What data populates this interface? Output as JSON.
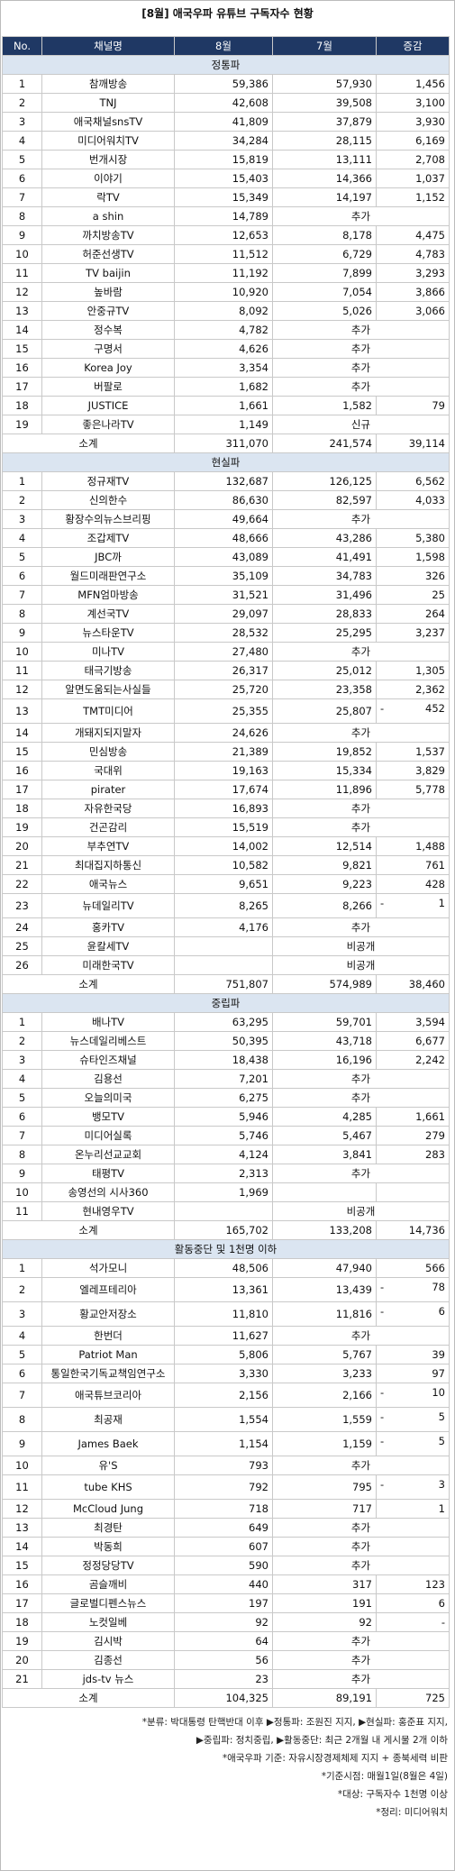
{
  "title": "[8월] 애국우파 유튜브 구독자수 현황",
  "columns": [
    "No.",
    "채널명",
    "8월",
    "7월",
    "증감"
  ],
  "sections": [
    {
      "name": "정통파",
      "rows": [
        [
          "1",
          "참깨방송",
          "59,386",
          "57,930",
          "1,456"
        ],
        [
          "2",
          "TNJ",
          "42,608",
          "39,508",
          "3,100"
        ],
        [
          "3",
          "애국채널snsTV",
          "41,809",
          "37,879",
          "3,930"
        ],
        [
          "4",
          "미디어워치TV",
          "34,284",
          "28,115",
          "6,169"
        ],
        [
          "5",
          "번개시장",
          "15,819",
          "13,111",
          "2,708"
        ],
        [
          "6",
          "이야기",
          "15,403",
          "14,366",
          "1,037"
        ],
        [
          "7",
          "락TV",
          "15,349",
          "14,197",
          "1,152"
        ],
        [
          "8",
          "a shin",
          "14,789",
          "추가",
          ""
        ],
        [
          "9",
          "까치방송TV",
          "12,653",
          "8,178",
          "4,475"
        ],
        [
          "10",
          "허준선생TV",
          "11,512",
          "6,729",
          "4,783"
        ],
        [
          "11",
          "TV baijin",
          "11,192",
          "7,899",
          "3,293"
        ],
        [
          "12",
          "높바람",
          "10,920",
          "7,054",
          "3,866"
        ],
        [
          "13",
          "안중규TV",
          "8,092",
          "5,026",
          "3,066"
        ],
        [
          "14",
          "정수복",
          "4,782",
          "추가",
          ""
        ],
        [
          "15",
          "구명서",
          "4,626",
          "추가",
          ""
        ],
        [
          "16",
          "Korea Joy",
          "3,354",
          "추가",
          ""
        ],
        [
          "17",
          "버팔로",
          "1,682",
          "추가",
          ""
        ],
        [
          "18",
          "JUSTICE",
          "1,661",
          "1,582",
          "79"
        ],
        [
          "19",
          "좋은나라TV",
          "1,149",
          "신규",
          ""
        ]
      ],
      "total": [
        "소계",
        "311,070",
        "241,574",
        "39,114"
      ]
    },
    {
      "name": "현실파",
      "rows": [
        [
          "1",
          "정규재TV",
          "132,687",
          "126,125",
          "6,562"
        ],
        [
          "2",
          "신의한수",
          "86,630",
          "82,597",
          "4,033"
        ],
        [
          "3",
          "황장수의뉴스브리핑",
          "49,664",
          "추가",
          ""
        ],
        [
          "4",
          "조갑제TV",
          "48,666",
          "43,286",
          "5,380"
        ],
        [
          "5",
          "JBC까",
          "43,089",
          "41,491",
          "1,598"
        ],
        [
          "6",
          "월드미래판연구소",
          "35,109",
          "34,783",
          "326"
        ],
        [
          "7",
          "MFN엄마방송",
          "31,521",
          "31,496",
          "25"
        ],
        [
          "8",
          "계선국TV",
          "29,097",
          "28,833",
          "264"
        ],
        [
          "9",
          "뉴스타운TV",
          "28,532",
          "25,295",
          "3,237"
        ],
        [
          "10",
          "미나TV",
          "27,480",
          "추가",
          ""
        ],
        [
          "11",
          "태극기방송",
          "26,317",
          "25,012",
          "1,305"
        ],
        [
          "12",
          "알면도움되는사실들",
          "25,720",
          "23,358",
          "2,362"
        ],
        [
          "13",
          "TMT미디어",
          "25,355",
          "25,807",
          "-|452"
        ],
        [
          "14",
          "개돼지되지말자",
          "24,626",
          "추가",
          ""
        ],
        [
          "15",
          "민심방송",
          "21,389",
          "19,852",
          "1,537"
        ],
        [
          "16",
          "국대위",
          "19,163",
          "15,334",
          "3,829"
        ],
        [
          "17",
          "pirater",
          "17,674",
          "11,896",
          "5,778"
        ],
        [
          "18",
          "자유한국당",
          "16,893",
          "추가",
          ""
        ],
        [
          "19",
          "건곤감리",
          "15,519",
          "추가",
          ""
        ],
        [
          "20",
          "부추연TV",
          "14,002",
          "12,514",
          "1,488"
        ],
        [
          "21",
          "최대집지하통신",
          "10,582",
          "9,821",
          "761"
        ],
        [
          "22",
          "애국뉴스",
          "9,651",
          "9,223",
          "428"
        ],
        [
          "23",
          "뉴데일리TV",
          "8,265",
          "8,266",
          "-|1"
        ],
        [
          "24",
          "홍카TV",
          "4,176",
          "추가",
          ""
        ],
        [
          "25",
          "윤칼세TV",
          "",
          "비공개",
          ""
        ],
        [
          "26",
          "미래한국TV",
          "",
          "비공개",
          ""
        ]
      ],
      "total": [
        "소계",
        "751,807",
        "574,989",
        "38,460"
      ]
    },
    {
      "name": "중립파",
      "rows": [
        [
          "1",
          "배나TV",
          "63,295",
          "59,701",
          "3,594"
        ],
        [
          "2",
          "뉴스데일리베스트",
          "50,395",
          "43,718",
          "6,677"
        ],
        [
          "3",
          "슈타인즈채널",
          "18,438",
          "16,196",
          "2,242"
        ],
        [
          "4",
          "김용선",
          "7,201",
          "추가",
          ""
        ],
        [
          "5",
          "오늘의미국",
          "6,275",
          "추가",
          ""
        ],
        [
          "6",
          "뱅모TV",
          "5,946",
          "4,285",
          "1,661"
        ],
        [
          "7",
          "미디어실록",
          "5,746",
          "5,467",
          "279"
        ],
        [
          "8",
          "온누리선교교회",
          "4,124",
          "3,841",
          "283"
        ],
        [
          "9",
          "태평TV",
          "2,313",
          "추가",
          ""
        ],
        [
          "10",
          "송영선의 시사360",
          "1,969",
          "",
          ""
        ],
        [
          "11",
          "현내영우TV",
          "",
          "비공개",
          ""
        ]
      ],
      "total": [
        "소계",
        "165,702",
        "133,208",
        "14,736"
      ]
    },
    {
      "name": "활동중단 및 1천명 이하",
      "rows": [
        [
          "1",
          "석가모니",
          "48,506",
          "47,940",
          "566"
        ],
        [
          "2",
          "엘레프테리아",
          "13,361",
          "13,439",
          "-|78"
        ],
        [
          "3",
          "황교안저장소",
          "11,810",
          "11,816",
          "-|6"
        ],
        [
          "4",
          "한번더",
          "11,627",
          "추가",
          ""
        ],
        [
          "5",
          "Patriot Man",
          "5,806",
          "5,767",
          "39"
        ],
        [
          "6",
          "통일한국기독교책임연구소",
          "3,330",
          "3,233",
          "97"
        ],
        [
          "7",
          "애국튜브코리아",
          "2,156",
          "2,166",
          "-|10"
        ],
        [
          "8",
          "최공재",
          "1,554",
          "1,559",
          "-|5"
        ],
        [
          "9",
          "James Baek",
          "1,154",
          "1,159",
          "-|5"
        ],
        [
          "10",
          "유'S",
          "793",
          "추가",
          ""
        ],
        [
          "11",
          "tube KHS",
          "792",
          "795",
          "-|3"
        ],
        [
          "12",
          "McCloud Jung",
          "718",
          "717",
          "1"
        ],
        [
          "13",
          "최경탄",
          "649",
          "추가",
          ""
        ],
        [
          "14",
          "박동희",
          "607",
          "추가",
          ""
        ],
        [
          "15",
          "정정당당TV",
          "590",
          "추가",
          ""
        ],
        [
          "16",
          "곰슬깨비",
          "440",
          "317",
          "123"
        ],
        [
          "17",
          "글로벌디펜스뉴스",
          "197",
          "191",
          "6"
        ],
        [
          "18",
          "노컷일베",
          "92",
          "92",
          "-"
        ],
        [
          "19",
          "김시박",
          "64",
          "추가",
          ""
        ],
        [
          "20",
          "김종선",
          "56",
          "추가",
          ""
        ],
        [
          "21",
          "jds-tv 뉴스",
          "23",
          "추가",
          ""
        ]
      ],
      "total": [
        "소계",
        "104,325",
        "89,191",
        "725"
      ]
    }
  ],
  "notes": [
    "*분류: 박대통령 탄핵반대 이후 ▶정통파: 조원진 지지, ▶현실파: 홍준표 지지,",
    "▶중립파: 정치중립, ▶활동중단: 최근 2개월 내 게시물 2개 이하",
    "*애국우파 기준: 자유시장경제체제 지지 + 종북세력 비판",
    "*기준시점: 매월1일(8월은 4일)",
    "*대상: 구독자수 1천명 이상",
    "*정리: 미디어워치"
  ],
  "colors": {
    "header_bg": "#1f3864",
    "section_bg": "#dbe5f1",
    "border": "#c9c9c9"
  }
}
